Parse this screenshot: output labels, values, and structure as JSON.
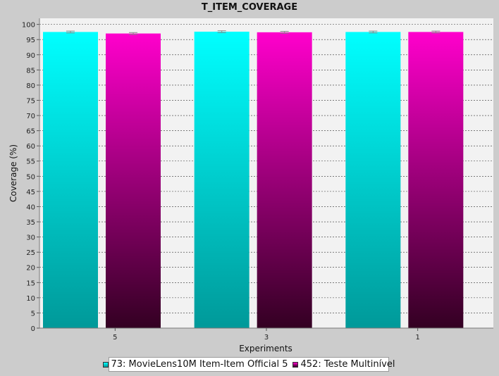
{
  "chart_data": {
    "type": "bar",
    "title": "T_ITEM_COVERAGE",
    "xlabel": "Experiments",
    "ylabel": "Coverage (%)",
    "categories": [
      "5",
      "3",
      "1"
    ],
    "ylim": [
      0,
      102
    ],
    "yticks": [
      0,
      5,
      10,
      15,
      20,
      25,
      30,
      35,
      40,
      45,
      50,
      55,
      60,
      65,
      70,
      75,
      80,
      85,
      90,
      95,
      100
    ],
    "grid": true,
    "legend": "bottom",
    "error_bars": true,
    "series": [
      {
        "name": "73: MovieLens10M Item-Item Official 5",
        "values": [
          97.5,
          97.6,
          97.5
        ],
        "errors": [
          0.3,
          0.3,
          0.3
        ],
        "color_top": "#00ffff",
        "color_bottom": "#009999"
      },
      {
        "name": "452: Teste Multinível",
        "values": [
          97.0,
          97.4,
          97.5
        ],
        "errors": [
          0.3,
          0.3,
          0.3
        ],
        "color_top": "#ff00cc",
        "color_bottom": "#330022"
      }
    ]
  },
  "colors": {
    "background": "#cccccc",
    "plot_background": "#f2f2f2",
    "grid": "#333333",
    "error_bar": "#888888"
  }
}
